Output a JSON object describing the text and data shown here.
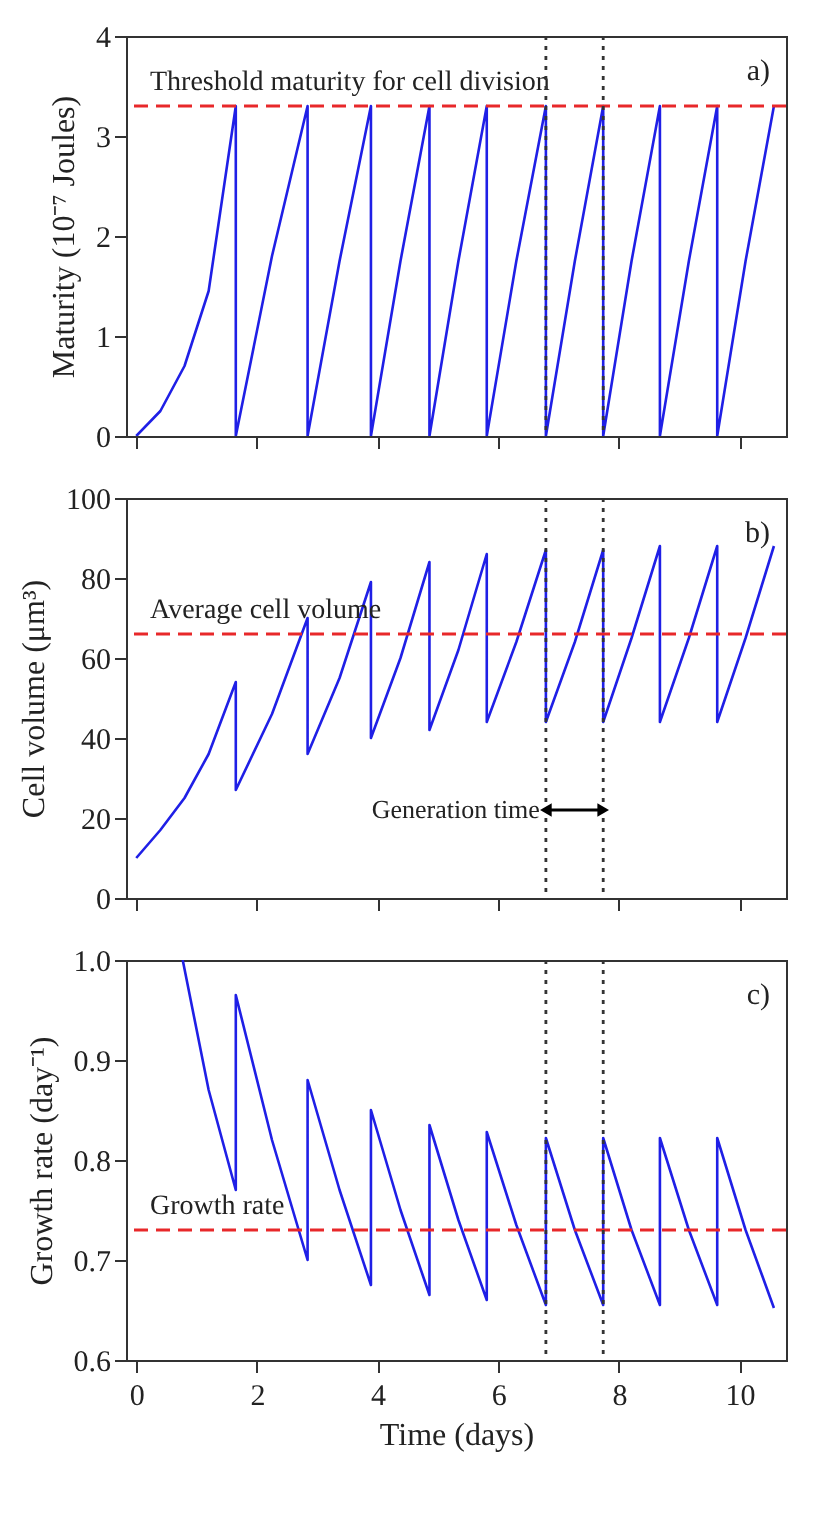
{
  "chart_data": [
    {
      "type": "line",
      "ylabel": "Maturity (10⁻⁷ Joules)",
      "xlim": [
        -0.17,
        10.77
      ],
      "xticks": [
        0,
        2,
        4,
        6,
        8,
        10
      ],
      "ylim": [
        0,
        4
      ],
      "yticks": [
        0,
        1,
        2,
        3,
        4
      ],
      "tick_labels": "y",
      "series": [
        {
          "color": "#1f1fe6",
          "x": [
            0,
            0.4,
            0.8,
            1.2,
            1.65,
            1.65,
            2.25,
            2.84,
            2.84,
            3.37,
            3.89,
            3.89,
            4.38,
            4.86,
            4.86,
            5.34,
            5.81,
            5.81,
            6.3,
            6.79,
            6.79,
            7.27,
            7.74,
            7.74,
            8.21,
            8.68,
            8.68,
            9.16,
            9.63,
            9.63,
            10.1,
            10.57
          ],
          "values": [
            0,
            0.25,
            0.7,
            1.45,
            3.3,
            0,
            1.8,
            3.3,
            0,
            1.75,
            3.3,
            0,
            1.75,
            3.3,
            0,
            1.75,
            3.3,
            0,
            1.75,
            3.3,
            0,
            1.75,
            3.3,
            0,
            1.75,
            3.3,
            0,
            1.75,
            3.3,
            0,
            1.75,
            3.3
          ]
        }
      ],
      "ref_lines": [
        {
          "axis": "y",
          "value": 3.3,
          "label": "Threshold maturity for cell division",
          "color": "#e8282a",
          "line_style": "dashed"
        },
        {
          "axis": "x",
          "value": 6.79,
          "color": "#333333",
          "line_style": "dotted"
        },
        {
          "axis": "x",
          "value": 7.74,
          "color": "#333333",
          "line_style": "dotted"
        }
      ],
      "annotations": [
        "a)"
      ]
    },
    {
      "type": "line",
      "ylabel": "Cell volume (μm³)",
      "xlim": [
        -0.17,
        10.77
      ],
      "xticks": [
        0,
        2,
        4,
        6,
        8,
        10
      ],
      "ylim": [
        0,
        100
      ],
      "yticks": [
        0,
        20,
        40,
        60,
        80,
        100
      ],
      "tick_labels": "y",
      "series": [
        {
          "color": "#1f1fe6",
          "x": [
            0,
            0.4,
            0.8,
            1.2,
            1.65,
            1.65,
            2.25,
            2.84,
            2.84,
            3.37,
            3.89,
            3.89,
            4.38,
            4.86,
            4.86,
            5.34,
            5.81,
            5.81,
            6.3,
            6.79,
            6.79,
            7.27,
            7.74,
            7.74,
            8.21,
            8.68,
            8.68,
            9.16,
            9.63,
            9.63,
            10.1,
            10.57
          ],
          "values": [
            10,
            17,
            25,
            36,
            54,
            27,
            46,
            70,
            36,
            55,
            79,
            40,
            60,
            84,
            42,
            62,
            86,
            44,
            64,
            87,
            44,
            64,
            87,
            44,
            65,
            88,
            44,
            65,
            88,
            44,
            65,
            88
          ]
        }
      ],
      "ref_lines": [
        {
          "axis": "y",
          "value": 66,
          "label": "Average cell volume",
          "color": "#e8282a",
          "line_style": "dashed"
        },
        {
          "axis": "x",
          "value": 6.79,
          "color": "#333333",
          "line_style": "dotted"
        },
        {
          "axis": "x",
          "value": 7.74,
          "color": "#333333",
          "line_style": "dotted"
        }
      ],
      "annotations": [
        {
          "text": "Generation time",
          "x": 6.79,
          "y": 22
        },
        "b)"
      ]
    },
    {
      "type": "line",
      "xlabel": "Time (days)",
      "ylabel": "Growth rate (day⁻¹)",
      "xlim": [
        -0.17,
        10.77
      ],
      "xticks": [
        0,
        2,
        4,
        6,
        8,
        10
      ],
      "ylim": [
        0.6,
        1.0
      ],
      "yticks": [
        {
          "value": 0.6,
          "label": "0.6"
        },
        0.7,
        0.8,
        0.9,
        {
          "value": 1.0,
          "label": "1.0"
        }
      ],
      "series": [
        {
          "color": "#1f1fe6",
          "x": [
            0.77,
            1.2,
            1.65,
            1.65,
            2.25,
            2.84,
            2.84,
            3.37,
            3.89,
            3.89,
            4.38,
            4.86,
            4.86,
            5.34,
            5.81,
            5.81,
            6.3,
            6.79,
            6.79,
            7.27,
            7.74,
            7.74,
            8.21,
            8.68,
            8.68,
            9.16,
            9.63,
            9.63,
            10.1,
            10.57
          ],
          "values": [
            1.0,
            0.87,
            0.77,
            0.965,
            0.82,
            0.7,
            0.88,
            0.77,
            0.675,
            0.85,
            0.75,
            0.665,
            0.835,
            0.74,
            0.66,
            0.828,
            0.735,
            0.655,
            0.822,
            0.73,
            0.655,
            0.822,
            0.73,
            0.655,
            0.822,
            0.73,
            0.655,
            0.822,
            0.73,
            0.652
          ]
        }
      ],
      "ref_lines": [
        {
          "axis": "y",
          "value": 0.73,
          "label": "Growth rate",
          "color": "#e8282a",
          "line_style": "dashed"
        },
        {
          "axis": "x",
          "value": 6.79,
          "color": "#333333",
          "line_style": "dotted"
        },
        {
          "axis": "x",
          "value": 7.74,
          "color": "#333333",
          "line_style": "dotted"
        }
      ],
      "annotations": [
        "c)"
      ]
    }
  ]
}
